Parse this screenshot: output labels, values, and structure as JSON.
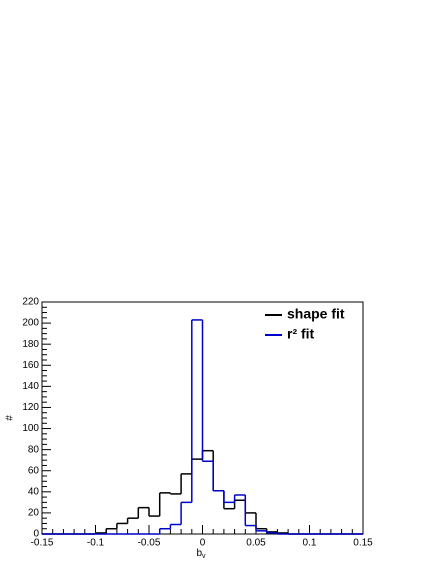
{
  "chart_data": {
    "type": "histogram",
    "x_label": "b",
    "x_label_subscript": "v",
    "y_label": "#",
    "bins": [
      -0.15,
      -0.14,
      -0.13,
      -0.12,
      -0.11,
      -0.1,
      -0.09,
      -0.08,
      -0.07,
      -0.06,
      -0.05,
      -0.04,
      -0.03,
      -0.02,
      -0.01,
      0,
      0.01,
      0.02,
      0.03,
      0.04,
      0.05,
      0.06,
      0.07,
      0.08,
      0.09,
      0.1,
      0.11,
      0.12,
      0.13,
      0.14,
      0.15
    ],
    "series": [
      {
        "name": "shape fit",
        "color": "#000000",
        "values": [
          0,
          0,
          0,
          0,
          0,
          1,
          5,
          10,
          15,
          25,
          17,
          39,
          38,
          57,
          71,
          79,
          41,
          24,
          32,
          20,
          5,
          2,
          1,
          0,
          0,
          0,
          0,
          0,
          0,
          0
        ]
      },
      {
        "name": "r² fit",
        "color": "#0000cc",
        "values": [
          0,
          0,
          0,
          0,
          0,
          0,
          0,
          0,
          0,
          0,
          0,
          5,
          9,
          30,
          203,
          69,
          41,
          30,
          37,
          8,
          3,
          1,
          0,
          0,
          0,
          0,
          0,
          0,
          0,
          0
        ]
      }
    ],
    "xlim": [
      -0.15,
      0.15
    ],
    "ylim": [
      0,
      220
    ],
    "xticks": [
      -0.15,
      -0.1,
      -0.05,
      0,
      0.05,
      0.1,
      0.15
    ],
    "yticks": [
      0,
      20,
      40,
      60,
      80,
      100,
      120,
      140,
      160,
      180,
      200,
      220
    ],
    "legend": "top-right"
  }
}
